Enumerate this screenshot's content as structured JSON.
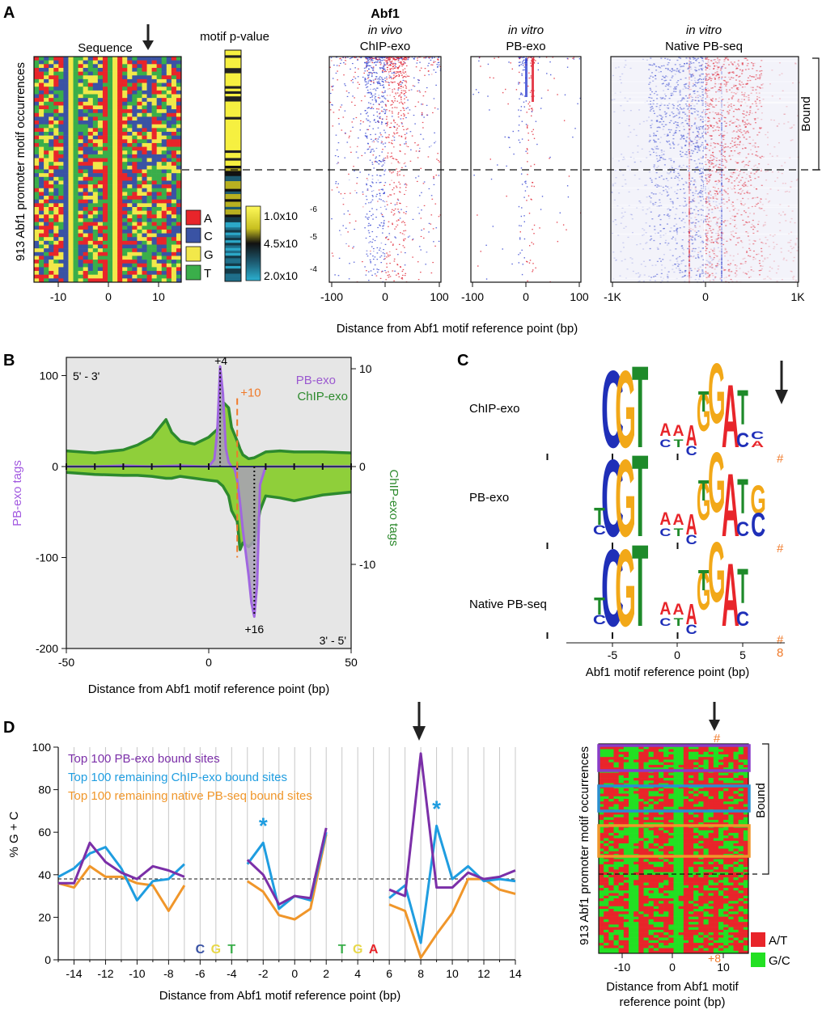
{
  "panels": {
    "A": {
      "letter": "A",
      "title": "Abf1",
      "ylabel": "913 Abf1 promoter motif occurrences",
      "sequence": {
        "title": "Sequence",
        "xticks": [
          "-10",
          "0",
          "10"
        ]
      },
      "motif_pvalue": {
        "title": "motif p-value",
        "scale_labels": [
          "1.0x10",
          "-6",
          "4.5x10",
          "-5",
          "2.0x10",
          "-4"
        ]
      },
      "base_legend": [
        {
          "base": "A",
          "color": "#e8252a"
        },
        {
          "base": "C",
          "color": "#3a53a4"
        },
        {
          "base": "G",
          "color": "#f2e84a"
        },
        {
          "base": "T",
          "color": "#3aae4a"
        }
      ],
      "heatmaps": [
        {
          "line1": "in vivo",
          "line2": "ChIP-exo",
          "xticks": [
            "-100",
            "0",
            "100"
          ]
        },
        {
          "line1": "in vitro",
          "line2": "PB-exo",
          "xticks": [
            "-100",
            "0",
            "100"
          ]
        },
        {
          "line1": "in vitro",
          "line2": "Native PB-seq",
          "xticks": [
            "-1K",
            "0",
            "1K"
          ]
        }
      ],
      "bound_label": "Bound",
      "xlabel": "Distance from Abf1 motif reference point (bp)"
    },
    "B": {
      "letter": "B",
      "left_axis_label": "PB-exo tags",
      "right_axis_label": "ChIP-exo tags",
      "xlabel": "Distance from Abf1 motif reference point (bp)",
      "strand_top": "5' - 3'",
      "strand_bottom": "3' - 5'",
      "legend": [
        "PB-exo",
        "ChIP-exo"
      ],
      "annotations": [
        "+4",
        "+10",
        "+16"
      ],
      "xticks": [
        "-50",
        "0",
        "50"
      ],
      "yticks_left": [
        "100",
        "0",
        "-100",
        "-200"
      ],
      "yticks_right": [
        "10",
        "0",
        "-10"
      ]
    },
    "C": {
      "letter": "C",
      "rows": [
        "ChIP-exo",
        "PB-exo",
        "Native PB-seq"
      ],
      "hash": "#",
      "eight": "8",
      "xticks": [
        "-5",
        "0",
        "5"
      ],
      "xlabel": "Abf1 motif reference point (bp)"
    },
    "D": {
      "letter": "D",
      "ylabel": "% G + C",
      "xlabel": "Distance from Abf1 motif reference point (bp)",
      "motif_letters": [
        {
          "t": "C",
          "c": "#3a53a4"
        },
        {
          "t": "G",
          "c": "#e8d84a"
        },
        {
          "t": "T",
          "c": "#3aae4a"
        },
        {
          "t": "T",
          "c": "#3aae4a"
        },
        {
          "t": "G",
          "c": "#e8d84a"
        },
        {
          "t": "A",
          "c": "#e8252a"
        }
      ],
      "star": "*"
    },
    "E": {
      "ylabel": "913 Abf1 promoter motif occurrences",
      "bound_label": "Bound",
      "hash": "#",
      "plus8": "+8",
      "xticks": [
        "-10",
        "0",
        "10"
      ],
      "xlabel_line1": "Distance from Abf1 motif",
      "xlabel_line2": "reference point (bp)",
      "legend": [
        {
          "label": "A/T",
          "color": "#e8252a"
        },
        {
          "label": "G/C",
          "color": "#22e022"
        }
      ]
    }
  },
  "chart_data": [
    {
      "type": "area",
      "panel": "B",
      "xlim": [
        -50,
        50
      ],
      "ylim": [
        -200,
        120
      ],
      "y2lim": [
        -12,
        10
      ],
      "series": [
        {
          "name": "PB-exo",
          "color": "#9b59d0",
          "x": [
            -50,
            -40,
            -30,
            -20,
            -10,
            -2,
            0,
            2,
            3,
            4,
            5,
            6,
            7,
            8,
            9,
            10,
            11,
            12,
            13,
            14,
            15,
            16,
            17,
            18,
            20,
            30,
            50
          ],
          "y": [
            0,
            0,
            1,
            0,
            1,
            0,
            0,
            8,
            40,
            110,
            80,
            20,
            5,
            0,
            -2,
            -15,
            -40,
            -70,
            -95,
            -120,
            -150,
            -165,
            -130,
            -20,
            0,
            0,
            0
          ]
        },
        {
          "name": "ChIP-exo",
          "color": "#2d8a2d",
          "axis": "right",
          "x": [
            -50,
            -40,
            -30,
            -25,
            -20,
            -15,
            -13,
            -10,
            -5,
            0,
            3,
            5,
            7,
            8,
            10,
            11,
            12,
            14,
            16,
            18,
            20,
            25,
            30,
            40,
            50
          ],
          "y_top": [
            1.6,
            1.4,
            1.7,
            2.2,
            3.0,
            4.8,
            3.5,
            2.6,
            2.3,
            3.0,
            3.8,
            6.6,
            6.0,
            4.0,
            2.6,
            1.8,
            1.2,
            0.8,
            0.9,
            1.2,
            1.5,
            1.6,
            1.5,
            1.5,
            1.4
          ],
          "y_bottom": [
            -0.6,
            -0.8,
            -0.9,
            -0.9,
            -1.0,
            -1.2,
            -1.2,
            -1.0,
            -1.2,
            -1.4,
            -1.5,
            -2.0,
            -3.0,
            -4.5,
            -5.6,
            -8.5,
            -7.8,
            -8.2,
            -7.6,
            -4.5,
            -3.0,
            -3.2,
            -3.5,
            -2.9,
            -2.6
          ]
        }
      ]
    },
    {
      "type": "line",
      "panel": "D",
      "xlim": [
        -15,
        14
      ],
      "ylim": [
        0,
        100
      ],
      "yticks": [
        0,
        20,
        40,
        60,
        80,
        100
      ],
      "xticks": [
        -14,
        -12,
        -10,
        -8,
        -6,
        -4,
        -2,
        0,
        2,
        4,
        6,
        8,
        10,
        12,
        14
      ],
      "reference_line": 38,
      "series": [
        {
          "name": "Top 100 PB-exo bound sites",
          "color": "#7b2fa8",
          "segments": [
            {
              "x": [
                -15,
                -14,
                -13,
                -12,
                -11,
                -10,
                -9,
                -8,
                -7
              ],
              "y": [
                36,
                36,
                55,
                46,
                41,
                38,
                44,
                42,
                39
              ]
            },
            {
              "x": [
                -3,
                -2,
                -1,
                0,
                1,
                2
              ],
              "y": [
                47,
                40,
                26,
                30,
                29,
                62
              ]
            },
            {
              "x": [
                6,
                7,
                8,
                9,
                10,
                11,
                12,
                13,
                14
              ],
              "y": [
                33,
                30,
                97,
                34,
                34,
                41,
                38,
                39,
                42
              ]
            }
          ]
        },
        {
          "name": "Top 100 remaining ChIP-exo bound sites",
          "color": "#1f9de0",
          "segments": [
            {
              "x": [
                -15,
                -14,
                -13,
                -12,
                -11,
                -10,
                -9,
                -8,
                -7
              ],
              "y": [
                39,
                43,
                50,
                53,
                43,
                28,
                37,
                38,
                45
              ]
            },
            {
              "x": [
                -3,
                -2,
                -1,
                0,
                1,
                2
              ],
              "y": [
                45,
                55,
                24,
                30,
                28,
                60
              ]
            },
            {
              "x": [
                6,
                7,
                8,
                9,
                10,
                11,
                12,
                13,
                14
              ],
              "y": [
                29,
                35,
                8,
                63,
                38,
                44,
                37,
                38,
                37
              ]
            }
          ]
        },
        {
          "name": "Top 100 remaining native PB-seq bound sites",
          "color": "#f0962a",
          "segments": [
            {
              "x": [
                -15,
                -14,
                -13,
                -12,
                -11,
                -10,
                -9,
                -8,
                -7
              ],
              "y": [
                36,
                34,
                44,
                39,
                39,
                36,
                35,
                23,
                35
              ]
            },
            {
              "x": [
                -3,
                -2,
                -1,
                0,
                1,
                2
              ],
              "y": [
                37,
                32,
                21,
                19,
                24,
                59
              ]
            },
            {
              "x": [
                6,
                7,
                8,
                9,
                10,
                11,
                12,
                13,
                14
              ],
              "y": [
                26,
                23,
                1,
                12,
                22,
                38,
                38,
                33,
                31
              ]
            }
          ]
        }
      ]
    }
  ]
}
